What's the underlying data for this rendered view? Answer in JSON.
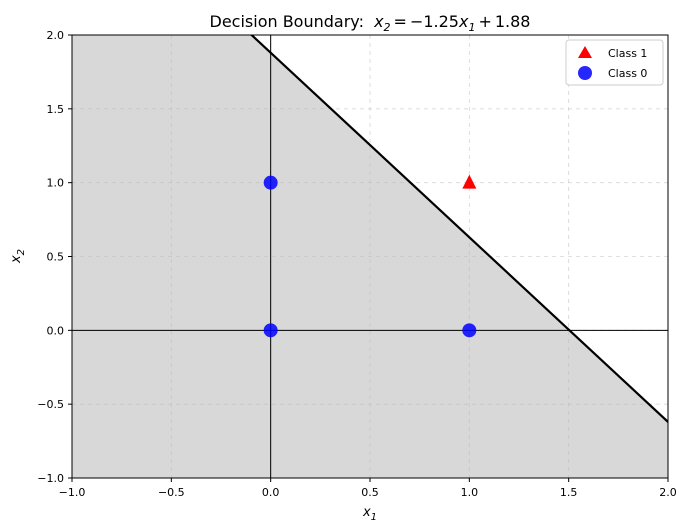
{
  "chart_data": {
    "type": "scatter",
    "title": "Decision Boundary:",
    "title_equation": {
      "lhs": "x",
      "lhs_sub": "2",
      "equals": "=",
      "coef": "−1.25",
      "var": "x",
      "var_sub": "1",
      "plus": "+",
      "intercept": "1.88"
    },
    "xlabel": {
      "main": "x",
      "sub": "1"
    },
    "ylabel": {
      "main": "x",
      "sub": "2"
    },
    "xlim": [
      -1.0,
      2.0
    ],
    "ylim": [
      -1.0,
      2.0
    ],
    "xticks": [
      -1.0,
      -0.5,
      0.0,
      0.5,
      1.0,
      1.5,
      2.0
    ],
    "yticks": [
      -1.0,
      -0.5,
      0.0,
      0.5,
      1.0,
      1.5,
      2.0
    ],
    "xtick_labels": [
      "−1.0",
      "−0.5",
      "0.0",
      "0.5",
      "1.0",
      "1.5",
      "2.0"
    ],
    "ytick_labels": [
      "−1.0",
      "−0.5",
      "0.0",
      "0.5",
      "1.0",
      "1.5",
      "2.0"
    ],
    "grid": true,
    "boundary": {
      "slope": -1.25,
      "intercept": 1.88,
      "shade": "below",
      "shade_color": "#d8d8d8"
    },
    "series": [
      {
        "name": "Class 1",
        "marker": "triangle",
        "color": "#ff0000",
        "points": [
          [
            1,
            1
          ]
        ]
      },
      {
        "name": "Class 0",
        "marker": "circle",
        "color": "#0000ff",
        "points": [
          [
            0,
            0
          ],
          [
            0,
            1
          ],
          [
            1,
            0
          ]
        ]
      }
    ],
    "legend": {
      "position": "top-right",
      "entries": [
        "Class 1",
        "Class 0"
      ]
    }
  }
}
